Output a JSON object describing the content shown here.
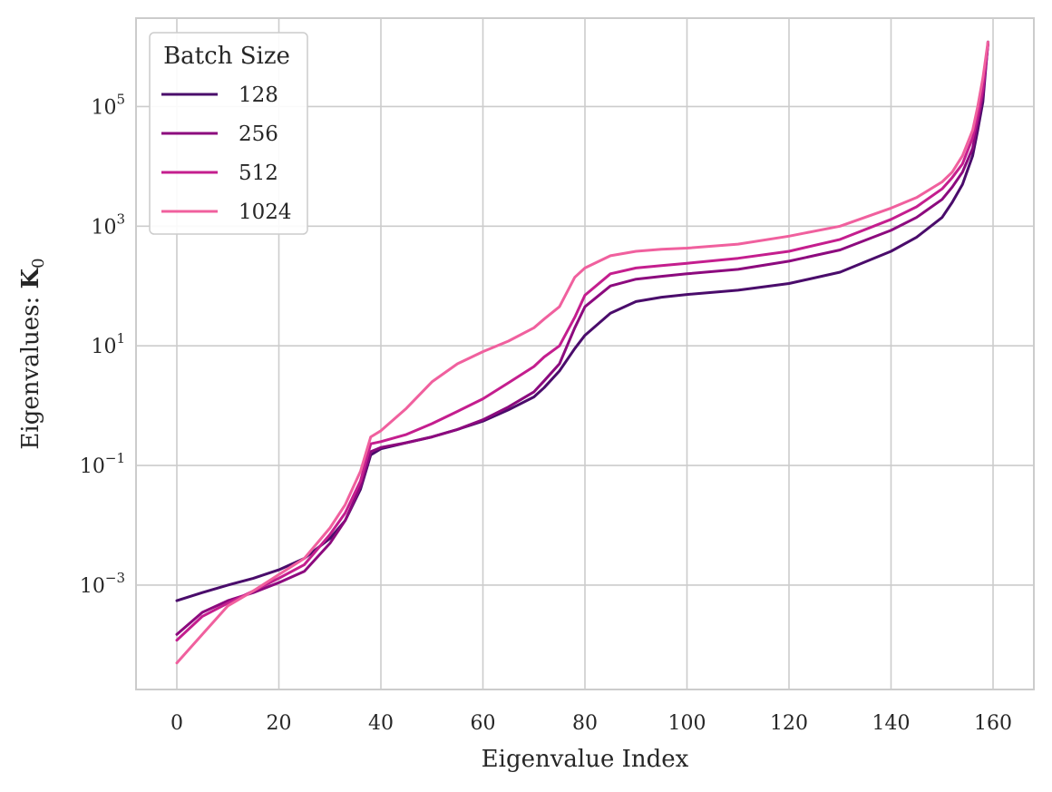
{
  "chart_data": {
    "type": "line",
    "xlabel": "Eigenvalue Index",
    "ylabel": "Eigenvalues: ",
    "ylabel_math_symbol": "K",
    "ylabel_math_subscript": "0",
    "yscale": "log",
    "xlim": [
      -8,
      168
    ],
    "ylim": [
      1.8e-05,
      3000000
    ],
    "xticks": [
      0,
      20,
      40,
      60,
      80,
      100,
      120,
      140,
      160
    ],
    "yticks": [
      {
        "value": 0.001,
        "base": "10",
        "exp": "−3"
      },
      {
        "value": 0.1,
        "base": "10",
        "exp": "−1"
      },
      {
        "value": 10,
        "base": "10",
        "exp": "1"
      },
      {
        "value": 1000,
        "base": "10",
        "exp": "3"
      },
      {
        "value": 100000,
        "base": "10",
        "exp": "5"
      }
    ],
    "grid": true,
    "legend": {
      "title": "Batch Size",
      "placement": "top-left"
    },
    "x": [
      0,
      5,
      10,
      15,
      20,
      25,
      30,
      33,
      36,
      38,
      40,
      45,
      50,
      55,
      60,
      65,
      70,
      72,
      75,
      78,
      80,
      85,
      90,
      95,
      100,
      110,
      120,
      130,
      140,
      145,
      150,
      152,
      154,
      156,
      157,
      158,
      159
    ],
    "series": [
      {
        "name": "128",
        "color": "#4a0c6b",
        "values": [
          0.00055,
          0.00075,
          0.001,
          0.0013,
          0.0018,
          0.0028,
          0.006,
          0.012,
          0.04,
          0.15,
          0.19,
          0.24,
          0.3,
          0.4,
          0.55,
          0.85,
          1.4,
          2.0,
          3.8,
          9,
          15,
          35,
          55,
          65,
          72,
          85,
          110,
          170,
          380,
          650,
          1400,
          2500,
          5000,
          15000,
          40000,
          120000,
          1200000
        ]
      },
      {
        "name": "256",
        "color": "#8c0a7e",
        "values": [
          0.00015,
          0.00035,
          0.00055,
          0.00075,
          0.0011,
          0.0017,
          0.005,
          0.012,
          0.045,
          0.17,
          0.2,
          0.24,
          0.3,
          0.4,
          0.58,
          0.95,
          1.7,
          2.6,
          5,
          20,
          45,
          100,
          130,
          145,
          160,
          190,
          260,
          400,
          850,
          1400,
          2800,
          4500,
          8000,
          20000,
          55000,
          160000,
          1100000
        ]
      },
      {
        "name": "512",
        "color": "#c41e8e",
        "values": [
          0.00012,
          0.0003,
          0.0005,
          0.0008,
          0.0013,
          0.0022,
          0.007,
          0.016,
          0.055,
          0.23,
          0.25,
          0.33,
          0.5,
          0.8,
          1.3,
          2.4,
          4.5,
          6.5,
          10,
          30,
          70,
          160,
          200,
          220,
          240,
          290,
          380,
          600,
          1300,
          2100,
          4200,
          6500,
          11000,
          30000,
          70000,
          200000,
          1100000
        ]
      },
      {
        "name": "1024",
        "color": "#f0609e",
        "values": [
          5e-05,
          0.00015,
          0.00045,
          0.0008,
          0.0015,
          0.0028,
          0.009,
          0.022,
          0.08,
          0.3,
          0.38,
          0.9,
          2.5,
          5,
          8,
          12,
          20,
          28,
          45,
          140,
          200,
          320,
          380,
          410,
          430,
          500,
          680,
          1000,
          2000,
          3000,
          5500,
          8000,
          15000,
          40000,
          100000,
          300000,
          1200000
        ]
      }
    ]
  }
}
